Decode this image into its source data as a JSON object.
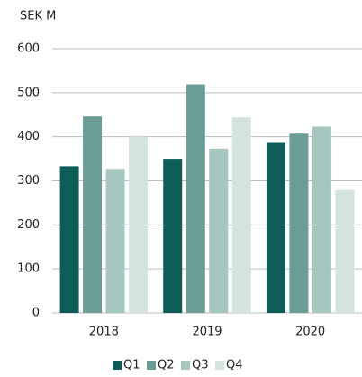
{
  "chart_data": {
    "type": "bar",
    "title": "SEK M",
    "categories": [
      "2018",
      "2019",
      "2020"
    ],
    "series": [
      {
        "name": "Q1",
        "color": "#0d5c57",
        "values": [
          333,
          350,
          388
        ]
      },
      {
        "name": "Q2",
        "color": "#6a9d96",
        "values": [
          446,
          519,
          407
        ]
      },
      {
        "name": "Q3",
        "color": "#a8c6c0",
        "values": [
          327,
          373,
          423
        ]
      },
      {
        "name": "Q4",
        "color": "#d4e3de",
        "values": [
          400,
          444,
          279
        ]
      }
    ],
    "ylim": [
      0,
      600
    ],
    "yticks": [
      0,
      100,
      200,
      300,
      400,
      500,
      600
    ],
    "grid": true,
    "legend": "bottom"
  }
}
